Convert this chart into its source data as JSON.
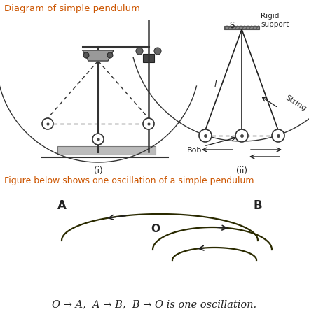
{
  "bg_color": "#ffffff",
  "title_top": "Diagram of simple pendulum",
  "title_top_color": "#cc5500",
  "subtitle": "Figure below shows one oscillation of a simple pendulum",
  "subtitle_color": "#cc5500",
  "bottom_text": "O → A,  A → B,  B → O is one oscillation.",
  "label_i": "(i)",
  "label_ii": "(ii)",
  "rigid_support": "Rigid\nsupport",
  "label_S": "S",
  "label_Bob": "Bob",
  "label_String": "String",
  "label_l": "l",
  "label_A": "A",
  "label_B": "B",
  "label_O": "O"
}
